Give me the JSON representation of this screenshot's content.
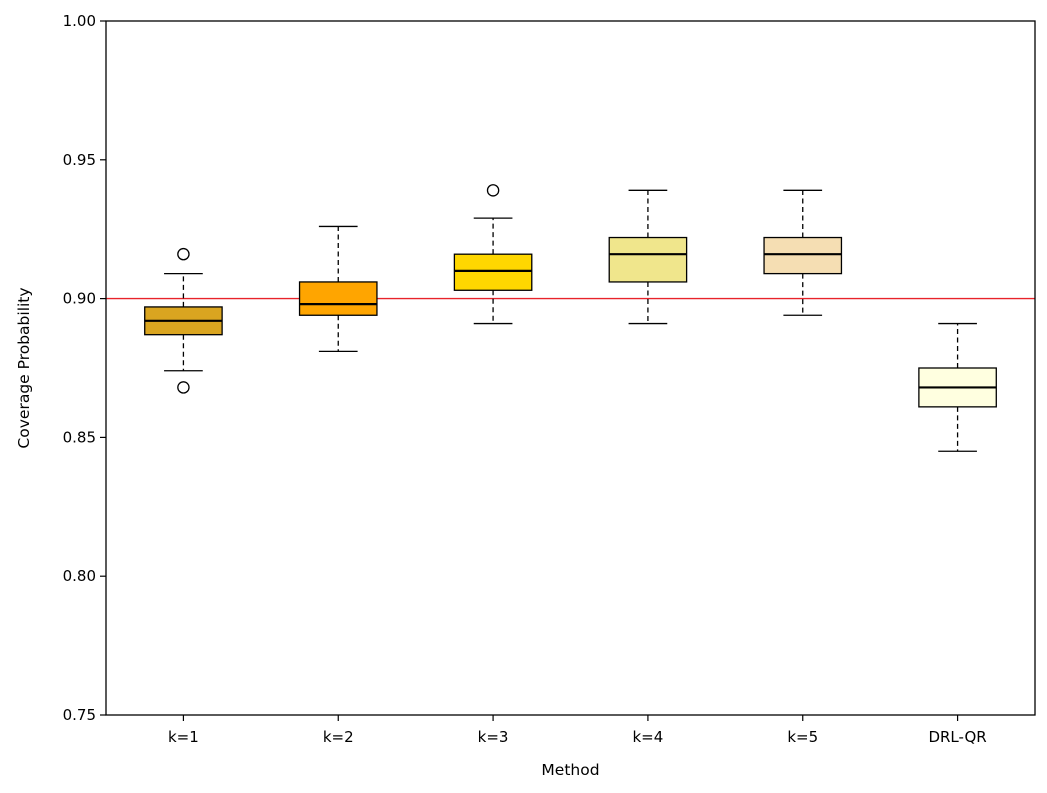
{
  "chart_data": {
    "type": "boxplot",
    "title": "",
    "xlabel": "Method",
    "ylabel": "Coverage Probability",
    "ylim": [
      0.75,
      1.0
    ],
    "yticks": [
      0.75,
      0.8,
      0.85,
      0.9,
      0.95,
      1.0
    ],
    "ytick_labels": [
      "0.75",
      "0.80",
      "0.85",
      "0.90",
      "0.95",
      "1.00"
    ],
    "grid": false,
    "reference_line": {
      "y": 0.9,
      "color": "#e8232a"
    },
    "categories": [
      "k=1",
      "k=2",
      "k=3",
      "k=4",
      "k=5",
      "DRL-QR"
    ],
    "boxes": [
      {
        "label": "k=1",
        "color": "#daa520",
        "whisker_low": 0.874,
        "q1": 0.887,
        "median": 0.892,
        "q3": 0.897,
        "whisker_high": 0.909,
        "outliers": [
          0.916,
          0.868
        ]
      },
      {
        "label": "k=2",
        "color": "#ffa500",
        "whisker_low": 0.881,
        "q1": 0.894,
        "median": 0.898,
        "q3": 0.906,
        "whisker_high": 0.926,
        "outliers": []
      },
      {
        "label": "k=3",
        "color": "#ffd700",
        "whisker_low": 0.891,
        "q1": 0.903,
        "median": 0.91,
        "q3": 0.916,
        "whisker_high": 0.929,
        "outliers": [
          0.939
        ]
      },
      {
        "label": "k=4",
        "color": "#f0e68c",
        "whisker_low": 0.891,
        "q1": 0.906,
        "median": 0.916,
        "q3": 0.922,
        "whisker_high": 0.939,
        "outliers": []
      },
      {
        "label": "k=5",
        "color": "#f5deb3",
        "whisker_low": 0.894,
        "q1": 0.909,
        "median": 0.916,
        "q3": 0.922,
        "whisker_high": 0.939,
        "outliers": []
      },
      {
        "label": "DRL-QR",
        "color": "#ffffe0",
        "whisker_low": 0.845,
        "q1": 0.861,
        "median": 0.868,
        "q3": 0.875,
        "whisker_high": 0.891,
        "outliers": []
      }
    ]
  }
}
